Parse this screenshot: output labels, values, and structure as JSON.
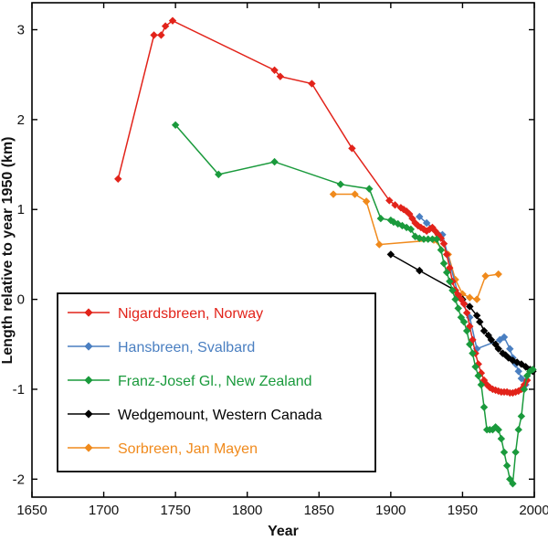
{
  "chart_data": {
    "type": "line",
    "title": "",
    "xlabel": "Year",
    "ylabel": "Length relative to year 1950 (km)",
    "xlim": [
      1650,
      2000
    ],
    "ylim": [
      -2.2,
      3.3
    ],
    "xticks": [
      1650,
      1700,
      1750,
      1800,
      1850,
      1900,
      1950,
      2000
    ],
    "yticks": [
      -2,
      -1,
      0,
      1,
      2,
      3
    ],
    "grid": false,
    "legend_position": "bottom-left",
    "series": [
      {
        "name": "Nigardsbreen, Norway",
        "color": "#e2231a",
        "x": [
          1710,
          1735,
          1740,
          1743,
          1748,
          1819,
          1823,
          1845,
          1873,
          1899,
          1903,
          1907,
          1909,
          1911,
          1913,
          1915,
          1917,
          1919,
          1921,
          1923,
          1925,
          1927,
          1929,
          1931,
          1933,
          1935,
          1937,
          1939,
          1941,
          1943,
          1945,
          1947,
          1949,
          1951,
          1953,
          1955,
          1957,
          1959,
          1961,
          1963,
          1965,
          1967,
          1969,
          1971,
          1973,
          1975,
          1977,
          1979,
          1981,
          1983,
          1985,
          1987,
          1989,
          1991,
          1993,
          1995
        ],
        "y": [
          1.34,
          2.94,
          2.94,
          3.04,
          3.1,
          2.55,
          2.48,
          2.4,
          1.68,
          1.1,
          1.05,
          1.02,
          1.0,
          0.98,
          0.95,
          0.9,
          0.85,
          0.82,
          0.8,
          0.78,
          0.76,
          0.78,
          0.8,
          0.76,
          0.72,
          0.68,
          0.62,
          0.5,
          0.35,
          0.2,
          0.1,
          0.05,
          0.0,
          -0.05,
          -0.15,
          -0.3,
          -0.45,
          -0.6,
          -0.72,
          -0.82,
          -0.9,
          -0.95,
          -0.98,
          -1.0,
          -1.01,
          -1.02,
          -1.03,
          -1.03,
          -1.03,
          -1.04,
          -1.04,
          -1.03,
          -1.02,
          -1.0,
          -0.95,
          -0.9
        ]
      },
      {
        "name": "Hansbreen, Svalbard",
        "color": "#4a7fc1",
        "x": [
          1920,
          1925,
          1936,
          1947,
          1955,
          1960,
          1976,
          1979,
          1983,
          1985,
          1987,
          1989,
          1991,
          1994
        ],
        "y": [
          0.92,
          0.85,
          0.72,
          0.05,
          -0.2,
          -0.55,
          -0.45,
          -0.42,
          -0.55,
          -0.65,
          -0.72,
          -0.8,
          -0.88,
          -0.95
        ]
      },
      {
        "name": "Franz-Josef Gl., New Zealand",
        "color": "#1a9a3c",
        "x": [
          1750,
          1780,
          1819,
          1865,
          1885,
          1893,
          1900,
          1902,
          1905,
          1908,
          1911,
          1914,
          1917,
          1920,
          1923,
          1926,
          1929,
          1932,
          1935,
          1937,
          1939,
          1941,
          1943,
          1945,
          1947,
          1949,
          1951,
          1953,
          1955,
          1957,
          1959,
          1961,
          1963,
          1965,
          1967,
          1969,
          1971,
          1973,
          1975,
          1977,
          1979,
          1981,
          1983,
          1985,
          1987,
          1989,
          1991,
          1993,
          1995,
          1997,
          1999
        ],
        "y": [
          1.94,
          1.39,
          1.53,
          1.28,
          1.23,
          0.9,
          0.88,
          0.86,
          0.84,
          0.82,
          0.8,
          0.78,
          0.7,
          0.68,
          0.67,
          0.67,
          0.67,
          0.67,
          0.55,
          0.4,
          0.3,
          0.2,
          0.1,
          0.0,
          -0.1,
          -0.2,
          -0.25,
          -0.35,
          -0.5,
          -0.6,
          -0.75,
          -0.85,
          -0.95,
          -1.2,
          -1.45,
          -1.45,
          -1.45,
          -1.42,
          -1.45,
          -1.55,
          -1.7,
          -1.85,
          -2.0,
          -2.05,
          -1.7,
          -1.45,
          -1.3,
          -1.0,
          -0.85,
          -0.8,
          -0.78
        ]
      },
      {
        "name": "Wedgemount, Western Canada",
        "color": "#000000",
        "x": [
          1900,
          1920,
          1945,
          1950,
          1955,
          1960,
          1962,
          1965,
          1968,
          1970,
          1973,
          1975,
          1978,
          1980,
          1982,
          1985,
          1988,
          1991,
          1994,
          1997,
          1999
        ],
        "y": [
          0.5,
          0.32,
          0.1,
          0.0,
          -0.08,
          -0.18,
          -0.25,
          -0.35,
          -0.4,
          -0.45,
          -0.5,
          -0.55,
          -0.6,
          -0.62,
          -0.65,
          -0.68,
          -0.7,
          -0.72,
          -0.75,
          -0.78,
          -0.8
        ]
      },
      {
        "name": "Sorbreen, Jan Mayen",
        "color": "#f08a1c",
        "x": [
          1860,
          1875,
          1883,
          1892,
          1930,
          1940,
          1945,
          1950,
          1955,
          1960,
          1966,
          1975
        ],
        "y": [
          1.17,
          1.17,
          1.09,
          0.61,
          0.66,
          0.5,
          0.22,
          0.06,
          0.02,
          0.0,
          0.26,
          0.28
        ]
      }
    ]
  }
}
